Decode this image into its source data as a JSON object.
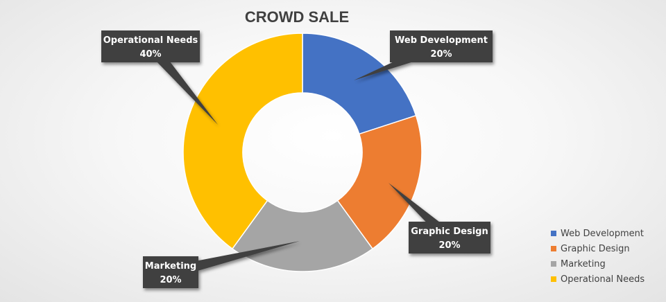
{
  "chart_data": {
    "type": "pie",
    "variant": "doughnut",
    "title": "CROWD SALE",
    "categories": [
      "Web Development",
      "Graphic Design",
      "Marketing",
      "Operational Needs"
    ],
    "values": [
      20,
      20,
      20,
      40
    ],
    "percent_labels": [
      "20%",
      "20%",
      "20%",
      "40%"
    ],
    "colors": [
      "#4472C4",
      "#ED7D31",
      "#A5A5A5",
      "#FFC000"
    ],
    "legend": {
      "position": "bottom-right",
      "items": [
        "Web Development",
        "Graphic Design",
        "Marketing",
        "Operational Needs"
      ]
    },
    "callout_color": "#404040"
  }
}
